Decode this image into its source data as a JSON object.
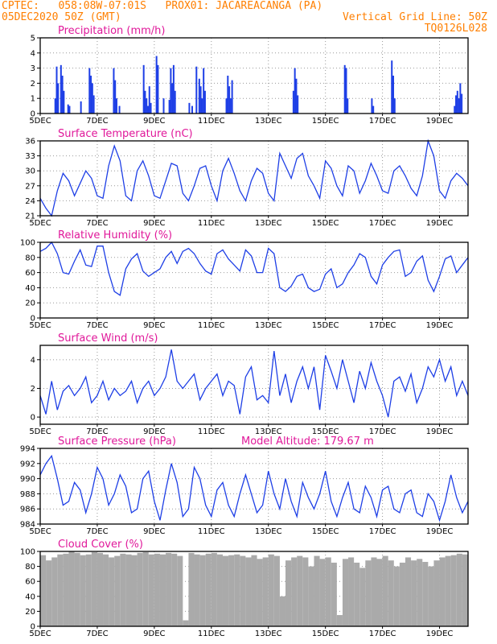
{
  "header": {
    "line1_left": "CPTEC:   058:08W-07:01S   PROX01: JACAREACANGA (PA)",
    "line2_left": "05DEC2020 50Z (GMT)",
    "line2_right": "Vertical Grid Line: 50Z",
    "line3_right": "TQ0126L028"
  },
  "x_axis": {
    "labels": [
      "5DEC",
      "7DEC",
      "9DEC",
      "11DEC",
      "13DEC",
      "15DEC",
      "17DEC",
      "19DEC"
    ],
    "label_days": [
      0,
      2,
      4,
      6,
      8,
      10,
      12,
      14
    ],
    "domain": [
      0,
      15
    ]
  },
  "extra_labels": {
    "model_altitude": "Model Altitude: 179.67 m"
  },
  "colors": {
    "line": "#1e3fe6",
    "title": "#e0189a",
    "header": "#ff7f00",
    "cloud": "#aaaaaa"
  },
  "chart_data": [
    {
      "type": "bar",
      "title": "Precipitation (mm/h)",
      "ylim": [
        0,
        5
      ],
      "yticks": [
        0,
        1,
        2,
        3,
        4,
        5
      ],
      "grid": true,
      "x": [
        0.5,
        0.55,
        0.6,
        0.7,
        0.75,
        0.8,
        0.95,
        1.0,
        1.4,
        1.7,
        1.75,
        1.8,
        1.85,
        2.55,
        2.6,
        2.65,
        2.75,
        3.6,
        3.65,
        3.7,
        3.75,
        3.8,
        3.85,
        4.05,
        4.1,
        4.3,
        4.5,
        4.55,
        4.6,
        4.65,
        4.7,
        5.2,
        5.3,
        5.45,
        5.55,
        5.6,
        5.65,
        5.7,
        5.75,
        6.5,
        6.55,
        6.6,
        6.65,
        6.7,
        8.85,
        8.9,
        8.95,
        9.0,
        10.65,
        10.7,
        10.75,
        11.6,
        11.65,
        12.3,
        12.35,
        12.4,
        14.5,
        14.55,
        14.6,
        14.65,
        14.7,
        14.75
      ],
      "values": [
        1.0,
        3.1,
        2.0,
        3.2,
        2.5,
        1.5,
        0.6,
        0.5,
        0.8,
        3.0,
        2.5,
        2.0,
        1.2,
        3.0,
        2.2,
        1.0,
        0.5,
        3.2,
        1.5,
        1.0,
        0.5,
        1.8,
        0.7,
        3.8,
        3.2,
        1.0,
        0.9,
        3.0,
        2.0,
        3.2,
        1.5,
        0.7,
        0.5,
        3.1,
        2.3,
        1.8,
        1.0,
        3.0,
        1.5,
        1.0,
        2.5,
        1.8,
        1.0,
        2.2,
        1.5,
        3.0,
        2.3,
        1.2,
        3.2,
        3.0,
        1.0,
        1.0,
        0.5,
        3.5,
        2.5,
        1.0,
        0.5,
        1.2,
        1.5,
        1.0,
        2.0,
        1.3
      ]
    },
    {
      "type": "line",
      "title": "Surface Temperature (nC)",
      "ylim": [
        21,
        36
      ],
      "yticks": [
        21,
        24,
        27,
        30,
        33,
        36
      ],
      "grid": true,
      "x": [
        0,
        0.2,
        0.4,
        0.6,
        0.8,
        1.0,
        1.2,
        1.4,
        1.6,
        1.8,
        2.0,
        2.2,
        2.4,
        2.6,
        2.8,
        3.0,
        3.2,
        3.4,
        3.6,
        3.8,
        4.0,
        4.2,
        4.4,
        4.6,
        4.8,
        5.0,
        5.2,
        5.4,
        5.6,
        5.8,
        6.0,
        6.2,
        6.4,
        6.6,
        6.8,
        7.0,
        7.2,
        7.4,
        7.6,
        7.8,
        8.0,
        8.2,
        8.4,
        8.6,
        8.8,
        9.0,
        9.2,
        9.4,
        9.6,
        9.8,
        10.0,
        10.2,
        10.4,
        10.6,
        10.8,
        11.0,
        11.2,
        11.4,
        11.6,
        11.8,
        12.0,
        12.2,
        12.4,
        12.6,
        12.8,
        13.0,
        13.2,
        13.4,
        13.6,
        13.8,
        14.0,
        14.2,
        14.4,
        14.6,
        14.8,
        15.0
      ],
      "values": [
        24.5,
        22.5,
        21.0,
        26.0,
        29.5,
        28.0,
        25.0,
        27.5,
        30.0,
        28.5,
        25.0,
        24.5,
        31.0,
        35.0,
        32.0,
        25.0,
        24.0,
        30.0,
        32.0,
        29.0,
        25.0,
        24.5,
        28.0,
        31.5,
        31.0,
        25.5,
        24.0,
        27.0,
        30.5,
        31.0,
        27.0,
        24.0,
        30.0,
        32.5,
        29.5,
        26.0,
        24.0,
        28.0,
        30.5,
        29.5,
        25.5,
        24.0,
        33.5,
        31.0,
        28.5,
        32.5,
        33.5,
        29.0,
        27.0,
        24.5,
        32.0,
        30.5,
        27.0,
        25.0,
        31.0,
        30.0,
        25.5,
        28.0,
        31.5,
        29.0,
        26.0,
        25.5,
        30.0,
        31.0,
        29.0,
        26.5,
        25.0,
        29.0,
        36.0,
        33.0,
        26.0,
        24.5,
        28.0,
        29.5,
        28.5,
        27.0
      ]
    },
    {
      "type": "line",
      "title": "Relative Humidity (%)",
      "ylim": [
        0,
        100
      ],
      "yticks": [
        0,
        20,
        40,
        60,
        80,
        100
      ],
      "grid": true,
      "x": [
        0,
        0.2,
        0.4,
        0.6,
        0.8,
        1.0,
        1.2,
        1.4,
        1.6,
        1.8,
        2.0,
        2.2,
        2.4,
        2.6,
        2.8,
        3.0,
        3.2,
        3.4,
        3.6,
        3.8,
        4.0,
        4.2,
        4.4,
        4.6,
        4.8,
        5.0,
        5.2,
        5.4,
        5.6,
        5.8,
        6.0,
        6.2,
        6.4,
        6.6,
        6.8,
        7.0,
        7.2,
        7.4,
        7.6,
        7.8,
        8.0,
        8.2,
        8.4,
        8.6,
        8.8,
        9.0,
        9.2,
        9.4,
        9.6,
        9.8,
        10.0,
        10.2,
        10.4,
        10.6,
        10.8,
        11.0,
        11.2,
        11.4,
        11.6,
        11.8,
        12.0,
        12.2,
        12.4,
        12.6,
        12.8,
        13.0,
        13.2,
        13.4,
        13.6,
        13.8,
        14.0,
        14.2,
        14.4,
        14.6,
        14.8,
        15.0
      ],
      "values": [
        88,
        92,
        100,
        85,
        60,
        58,
        75,
        90,
        70,
        68,
        95,
        95,
        60,
        35,
        30,
        65,
        78,
        85,
        62,
        55,
        60,
        65,
        80,
        88,
        72,
        88,
        92,
        85,
        72,
        62,
        58,
        85,
        90,
        78,
        70,
        62,
        90,
        82,
        60,
        60,
        92,
        85,
        40,
        35,
        42,
        55,
        58,
        40,
        35,
        38,
        58,
        65,
        40,
        45,
        60,
        70,
        85,
        80,
        55,
        45,
        70,
        80,
        88,
        90,
        55,
        60,
        75,
        82,
        50,
        35,
        55,
        78,
        82,
        60,
        70,
        80
      ]
    },
    {
      "type": "line",
      "title": "Surface Wind (m/s)",
      "ylim": [
        -0.5,
        5
      ],
      "yticks": [
        0,
        2,
        4
      ],
      "grid": true,
      "x": [
        0,
        0.2,
        0.4,
        0.6,
        0.8,
        1.0,
        1.2,
        1.4,
        1.6,
        1.8,
        2.0,
        2.2,
        2.4,
        2.6,
        2.8,
        3.0,
        3.2,
        3.4,
        3.6,
        3.8,
        4.0,
        4.2,
        4.4,
        4.6,
        4.8,
        5.0,
        5.2,
        5.4,
        5.6,
        5.8,
        6.0,
        6.2,
        6.4,
        6.6,
        6.8,
        7.0,
        7.2,
        7.4,
        7.6,
        7.8,
        8.0,
        8.2,
        8.4,
        8.6,
        8.8,
        9.0,
        9.2,
        9.4,
        9.6,
        9.8,
        10.0,
        10.2,
        10.4,
        10.6,
        10.8,
        11.0,
        11.2,
        11.4,
        11.6,
        11.8,
        12.0,
        12.2,
        12.4,
        12.6,
        12.8,
        13.0,
        13.2,
        13.4,
        13.6,
        13.8,
        14.0,
        14.2,
        14.4,
        14.6,
        14.8,
        15.0
      ],
      "values": [
        1.5,
        0.2,
        2.5,
        0.5,
        1.8,
        2.2,
        1.5,
        2.0,
        2.8,
        1.0,
        1.5,
        2.5,
        1.2,
        2.0,
        1.5,
        1.8,
        2.5,
        1.0,
        2.0,
        2.5,
        1.5,
        2.0,
        2.8,
        4.7,
        2.5,
        2.0,
        2.5,
        3.0,
        1.2,
        2.0,
        2.5,
        3.0,
        1.5,
        2.5,
        2.2,
        0.2,
        2.8,
        3.5,
        1.2,
        1.5,
        1.0,
        4.6,
        1.5,
        3.0,
        1.0,
        2.5,
        3.5,
        2.0,
        3.5,
        0.5,
        4.3,
        3.2,
        2.0,
        4.0,
        2.5,
        1.0,
        3.2,
        2.0,
        3.8,
        2.5,
        1.5,
        0.0,
        2.5,
        2.8,
        1.8,
        3.0,
        1.0,
        2.0,
        3.5,
        2.8,
        4.0,
        2.5,
        3.5,
        1.5,
        2.5,
        1.5
      ]
    },
    {
      "type": "line",
      "title": "Surface Pressure (hPa)",
      "ylim": [
        984,
        994
      ],
      "yticks": [
        984,
        986,
        988,
        990,
        992,
        994
      ],
      "grid": true,
      "x": [
        0,
        0.2,
        0.4,
        0.6,
        0.8,
        1.0,
        1.2,
        1.4,
        1.6,
        1.8,
        2.0,
        2.2,
        2.4,
        2.6,
        2.8,
        3.0,
        3.2,
        3.4,
        3.6,
        3.8,
        4.0,
        4.2,
        4.4,
        4.6,
        4.8,
        5.0,
        5.2,
        5.4,
        5.6,
        5.8,
        6.0,
        6.2,
        6.4,
        6.6,
        6.8,
        7.0,
        7.2,
        7.4,
        7.6,
        7.8,
        8.0,
        8.2,
        8.4,
        8.6,
        8.8,
        9.0,
        9.2,
        9.4,
        9.6,
        9.8,
        10.0,
        10.2,
        10.4,
        10.6,
        10.8,
        11.0,
        11.2,
        11.4,
        11.6,
        11.8,
        12.0,
        12.2,
        12.4,
        12.6,
        12.8,
        13.0,
        13.2,
        13.4,
        13.6,
        13.8,
        14.0,
        14.2,
        14.4,
        14.6,
        14.8,
        15.0
      ],
      "values": [
        990.5,
        992.0,
        993.0,
        990.0,
        986.5,
        987.0,
        989.5,
        988.5,
        985.5,
        988.0,
        991.5,
        990.0,
        986.5,
        988.0,
        990.5,
        989.0,
        985.5,
        986.0,
        990.0,
        991.0,
        987.0,
        984.5,
        988.5,
        992.0,
        989.5,
        985.0,
        986.0,
        991.5,
        990.0,
        986.5,
        985.0,
        988.5,
        989.5,
        986.5,
        985.0,
        988.0,
        990.5,
        988.0,
        985.5,
        986.5,
        991.0,
        988.0,
        986.0,
        990.0,
        987.0,
        985.0,
        989.5,
        987.5,
        986.0,
        988.0,
        991.0,
        987.0,
        985.0,
        987.5,
        989.5,
        986.0,
        985.5,
        989.0,
        987.5,
        985.0,
        988.5,
        989.0,
        986.0,
        985.5,
        988.0,
        988.5,
        985.5,
        985.0,
        988.0,
        987.0,
        984.5,
        987.0,
        990.5,
        987.5,
        985.5,
        987.0
      ]
    },
    {
      "type": "bar",
      "title": "Cloud Cover (%)",
      "ylim": [
        0,
        100
      ],
      "yticks": [
        0,
        20,
        40,
        60,
        80,
        100
      ],
      "grid": true,
      "x": [
        0,
        0.2,
        0.4,
        0.6,
        0.8,
        1.0,
        1.2,
        1.4,
        1.6,
        1.8,
        2.0,
        2.2,
        2.4,
        2.6,
        2.8,
        3.0,
        3.2,
        3.4,
        3.6,
        3.8,
        4.0,
        4.2,
        4.4,
        4.6,
        4.8,
        5.0,
        5.2,
        5.4,
        5.6,
        5.8,
        6.0,
        6.2,
        6.4,
        6.6,
        6.8,
        7.0,
        7.2,
        7.4,
        7.6,
        7.8,
        8.0,
        8.2,
        8.4,
        8.6,
        8.8,
        9.0,
        9.2,
        9.4,
        9.6,
        9.8,
        10.0,
        10.2,
        10.4,
        10.6,
        10.8,
        11.0,
        11.2,
        11.4,
        11.6,
        11.8,
        12.0,
        12.2,
        12.4,
        12.6,
        12.8,
        13.0,
        13.2,
        13.4,
        13.6,
        13.8,
        14.0,
        14.2,
        14.4,
        14.6,
        14.8
      ],
      "values": [
        95,
        88,
        92,
        96,
        97,
        100,
        98,
        95,
        96,
        99,
        98,
        96,
        92,
        94,
        97,
        96,
        95,
        98,
        99,
        96,
        97,
        96,
        98,
        97,
        94,
        8,
        98,
        96,
        95,
        97,
        98,
        96,
        94,
        95,
        96,
        94,
        92,
        95,
        90,
        92,
        96,
        94,
        40,
        88,
        92,
        94,
        92,
        80,
        94,
        90,
        92,
        85,
        15,
        90,
        92,
        85,
        78,
        88,
        92,
        90,
        94,
        88,
        80,
        85,
        92,
        88,
        90,
        86,
        80,
        88,
        92,
        94,
        95,
        97,
        96
      ]
    }
  ]
}
